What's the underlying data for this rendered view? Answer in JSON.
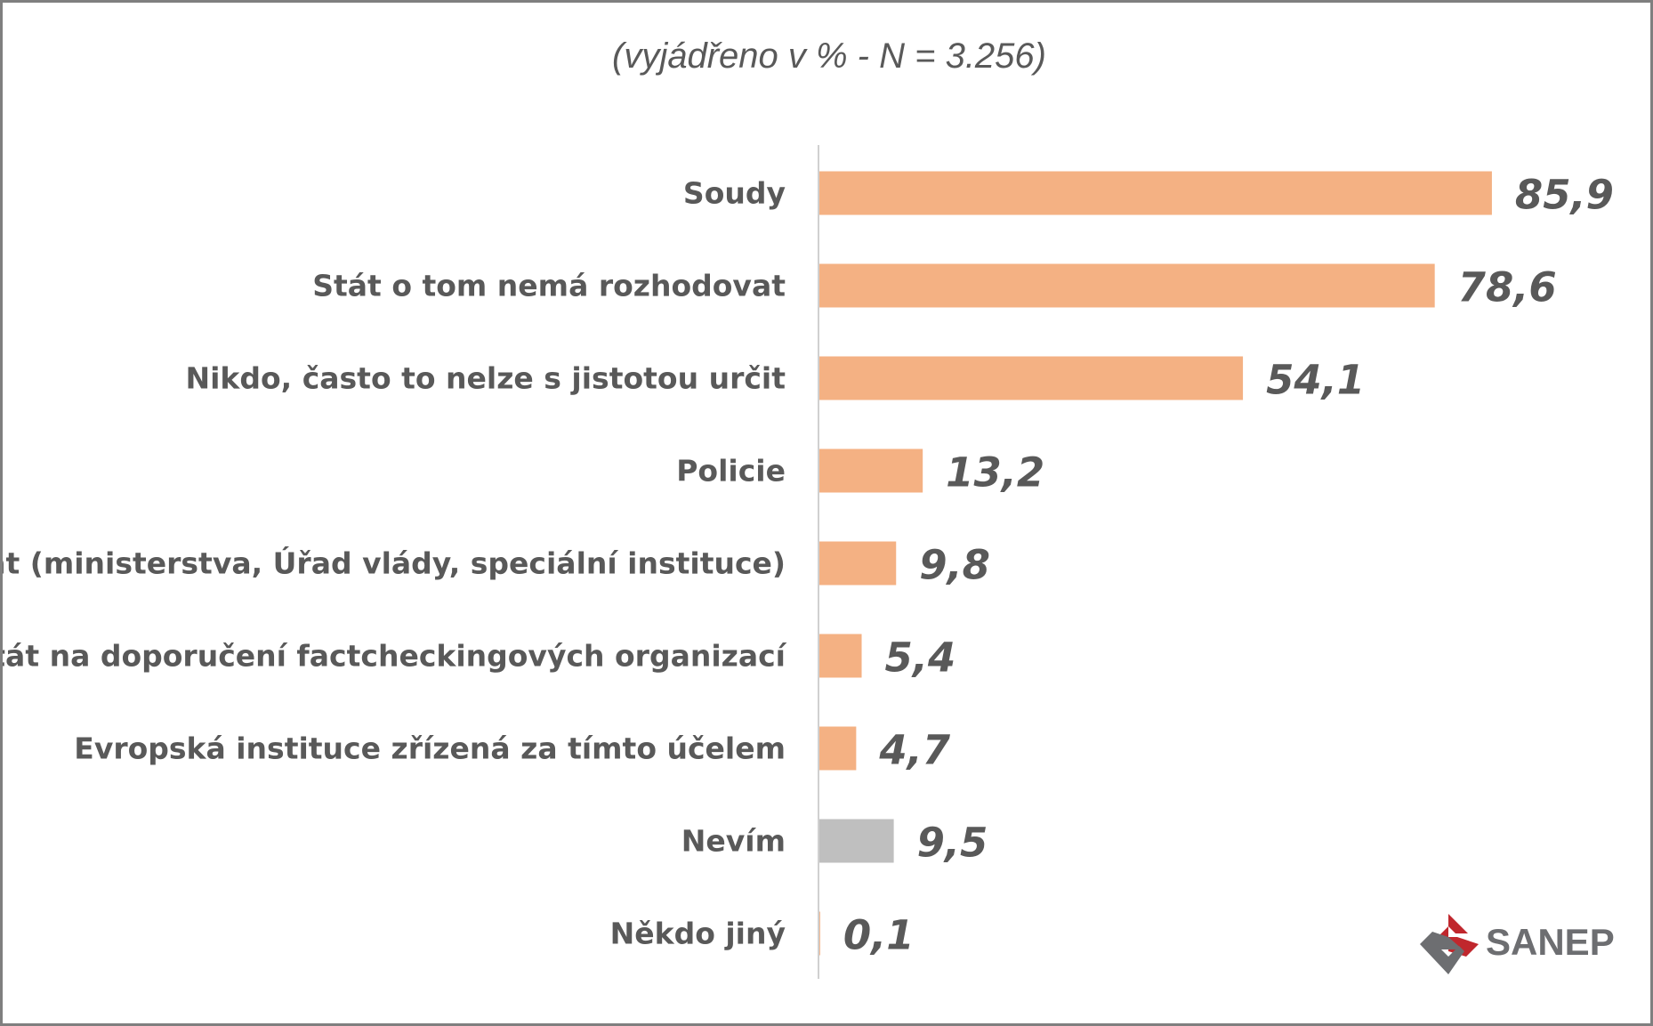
{
  "chart_data": {
    "type": "bar",
    "orientation": "horizontal",
    "subtitle": "(vyjádřeno v % - N = 3.256)",
    "categories": [
      "Soudy",
      "Stát o tom nemá rozhodovat",
      "Nikdo, často to nelze s jistotou určit",
      "Policie",
      "Stát (ministerstva, Úřad vlády, speciální instituce)",
      "Stát na doporučení factcheckingových organizací",
      "Evropská instituce zřízená za tímto účelem",
      "Nevím",
      "Někdo jiný"
    ],
    "values": [
      85.9,
      78.6,
      54.1,
      13.2,
      9.8,
      5.4,
      4.7,
      9.5,
      0.1
    ],
    "value_labels": [
      "85,9",
      "78,6",
      "54,1",
      "13,2",
      "9,8",
      "5,4",
      "4,7",
      "9,5",
      "0,1"
    ],
    "bar_colors": [
      "#f4b183",
      "#f4b183",
      "#f4b183",
      "#f4b183",
      "#f4b183",
      "#f4b183",
      "#f4b183",
      "#bfbfbf",
      "#f4b183"
    ],
    "xlim": [
      0,
      100
    ],
    "grid": false,
    "legend": "none"
  },
  "logo": {
    "text": "SANEP",
    "colors": {
      "red": "#c0272d",
      "gray": "#6d6e71"
    }
  }
}
